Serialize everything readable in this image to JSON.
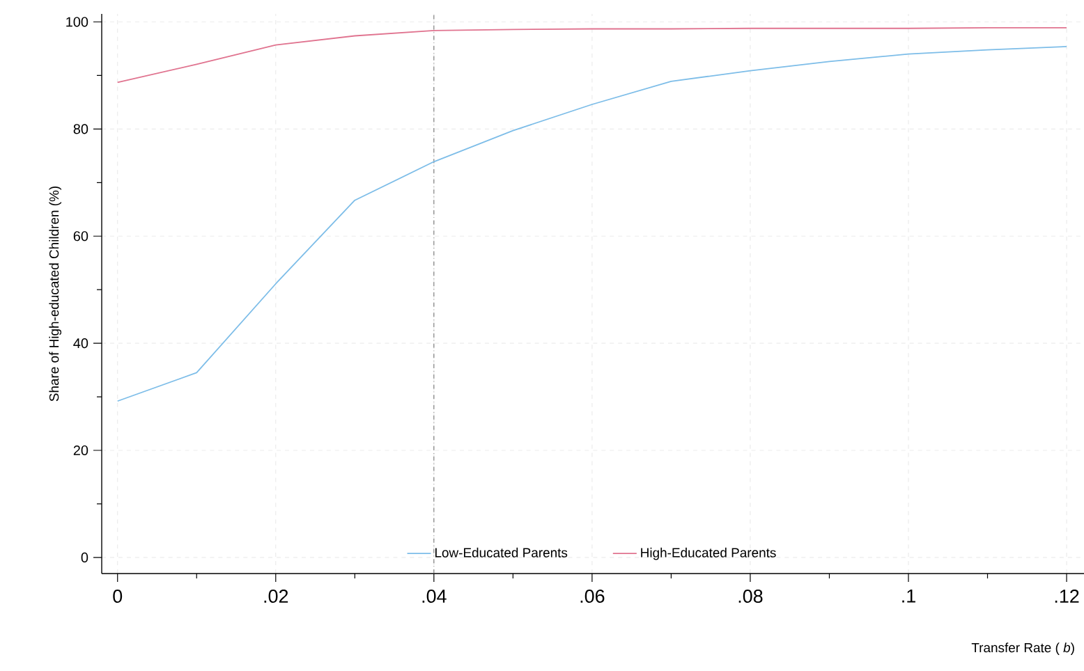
{
  "chart_data": {
    "type": "line",
    "xlabel": "Transfer Rate ( *b*)",
    "ylabel": "Share of High-educated Children (%)",
    "x": [
      0,
      0.01,
      0.02,
      0.03,
      0.04,
      0.05,
      0.06,
      0.07,
      0.08,
      0.09,
      0.1,
      0.11,
      0.12
    ],
    "series": [
      {
        "name": "Low-Educated Parents",
        "color": "#7dbde8",
        "values": [
          29.2,
          34.5,
          51.1,
          66.7,
          73.9,
          79.7,
          84.6,
          88.9,
          90.9,
          92.6,
          94.0,
          94.8,
          95.4
        ]
      },
      {
        "name": "High-Educated Parents",
        "color": "#e0738f",
        "values": [
          88.7,
          92.1,
          95.7,
          97.4,
          98.4,
          98.6,
          98.7,
          98.7,
          98.8,
          98.8,
          98.8,
          98.9,
          98.9
        ]
      }
    ],
    "xlim": [
      -0.002,
      0.1222
    ],
    "ylim": [
      -3,
      101.5
    ],
    "xticks": [
      {
        "value": 0,
        "label": "0"
      },
      {
        "value": 0.01,
        "label": null
      },
      {
        "value": 0.02,
        "label": ".02"
      },
      {
        "value": 0.03,
        "label": null
      },
      {
        "value": 0.04,
        "label": ".04"
      },
      {
        "value": 0.05,
        "label": null
      },
      {
        "value": 0.06,
        "label": ".06"
      },
      {
        "value": 0.07,
        "label": null
      },
      {
        "value": 0.08,
        "label": ".08"
      },
      {
        "value": 0.09,
        "label": null
      },
      {
        "value": 0.1,
        "label": ".1"
      },
      {
        "value": 0.11,
        "label": null
      },
      {
        "value": 0.12,
        "label": ".12"
      }
    ],
    "yticks": [
      0,
      {
        "value": 10,
        "label": null
      },
      20,
      {
        "value": 30,
        "label": null
      },
      40,
      {
        "value": 50,
        "label": null
      },
      60,
      {
        "value": 70,
        "label": null
      },
      80,
      {
        "value": 90,
        "label": null
      },
      100
    ],
    "ref_lines": [
      {
        "axis": "x",
        "value": 0.04,
        "color": "#666666",
        "line_style": "dashdot"
      }
    ],
    "grid": true,
    "legend": "bottom",
    "line_style": "solid",
    "marker": "none"
  }
}
